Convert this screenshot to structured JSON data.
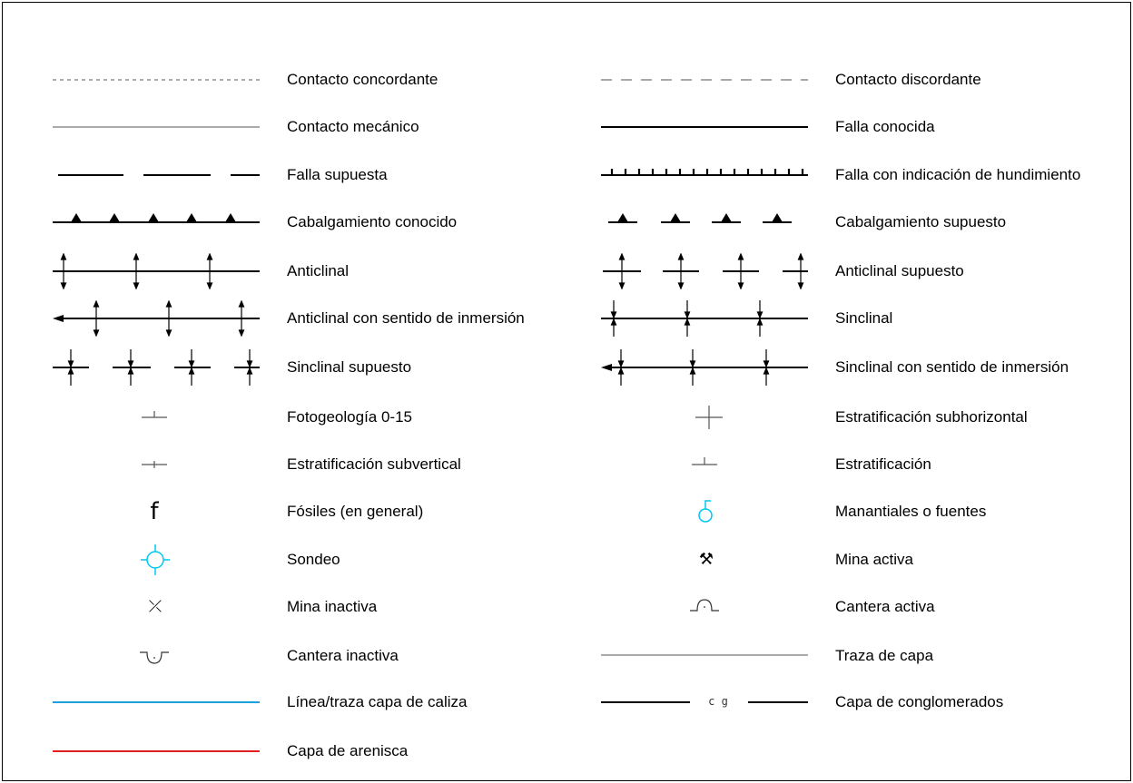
{
  "legend": {
    "left": [
      {
        "label": "Contacto concordante",
        "symbol": "dotted-line-icon"
      },
      {
        "label": "Contacto mecánico",
        "symbol": "thin-gray-line-icon"
      },
      {
        "label": "Falla supuesta",
        "symbol": "long-dashed-line-icon"
      },
      {
        "label": "Cabalgamiento conocido",
        "symbol": "thrust-triangles-icon"
      },
      {
        "label": "Anticlinal",
        "symbol": "anticline-icon"
      },
      {
        "label": "Anticlinal con sentido de inmersión",
        "symbol": "anticline-plunge-icon"
      },
      {
        "label": "Sinclinal supuesto",
        "symbol": "syncline-dashed-icon"
      },
      {
        "label": "Fotogeología 0-15",
        "symbol": "dip-small-icon"
      },
      {
        "label": "Estratificación subvertical",
        "symbol": "subvertical-icon"
      },
      {
        "label": "Fósiles (en general)",
        "symbol": "fossil-f-icon",
        "glyph": "f"
      },
      {
        "label": "Sondeo",
        "symbol": "borehole-icon"
      },
      {
        "label": "Mina inactiva",
        "symbol": "inactive-mine-icon",
        "glyph": "⤫"
      },
      {
        "label": "Cantera inactiva",
        "symbol": "inactive-quarry-icon"
      },
      {
        "label": "Línea/traza capa de caliza",
        "symbol": "cyan-line-icon"
      },
      {
        "label": "Capa de arenisca",
        "symbol": "red-line-icon"
      }
    ],
    "right": [
      {
        "label": "Contacto discordante",
        "symbol": "dashed-line-icon"
      },
      {
        "label": "Falla conocida",
        "symbol": "thick-line-icon"
      },
      {
        "label": "Falla con indicación de hundimiento",
        "symbol": "ticked-fault-icon"
      },
      {
        "label": "Cabalgamiento supuesto",
        "symbol": "thrust-dashed-icon"
      },
      {
        "label": "Anticlinal supuesto",
        "symbol": "anticline-dashed-icon"
      },
      {
        "label": "Sinclinal",
        "symbol": "syncline-icon"
      },
      {
        "label": "Sinclinal con sentido de inmersión",
        "symbol": "syncline-plunge-icon"
      },
      {
        "label": "Estratificación subhorizontal",
        "symbol": "cross-icon"
      },
      {
        "label": "Estratificación",
        "symbol": "bedding-icon"
      },
      {
        "label": "Manantiales o fuentes",
        "symbol": "spring-icon"
      },
      {
        "label": "Mina activa",
        "symbol": "active-mine-icon",
        "glyph": "⚒"
      },
      {
        "label": "Cantera activa",
        "symbol": "active-quarry-icon"
      },
      {
        "label": "Traza de capa",
        "symbol": "bed-trace-icon"
      },
      {
        "label": "Capa de conglomerados",
        "symbol": "conglomerate-icon",
        "glyph": "c g"
      }
    ]
  },
  "colors": {
    "ink": "#000000",
    "gray": "#777777",
    "cyan": "#00c8f0",
    "limestone": "#1ea0e0",
    "sandstone": "#e02020"
  }
}
